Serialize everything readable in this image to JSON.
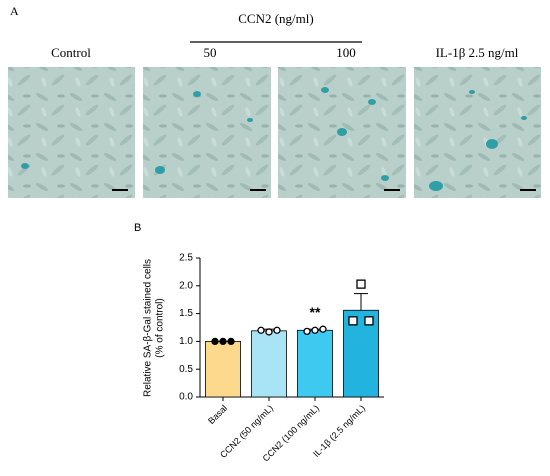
{
  "panel_a": {
    "label": "A",
    "group_label": "CCN2 (ng/ml)",
    "image_labels": [
      "Control",
      "50",
      "100",
      "IL-1β 2.5 ng/ml"
    ]
  },
  "chart_data": {
    "type": "bar",
    "panel_label": "B",
    "ylabel": [
      "Relative SA-β-Gal stained cells",
      "(% of control)"
    ],
    "categories": [
      "Basal",
      "CCN2 (50 ng/mL)",
      "CCN2 (100 ng/mL)",
      "IL-1β (2.5 ng/mL)"
    ],
    "values": [
      1.0,
      1.19,
      1.2,
      1.56
    ],
    "errors": [
      0,
      0.03,
      0.02,
      0.3
    ],
    "points": [
      [
        1.0,
        1.0,
        1.0
      ],
      [
        1.2,
        1.17,
        1.2
      ],
      [
        1.18,
        1.2,
        1.22
      ],
      [
        2.03,
        1.37,
        1.37
      ]
    ],
    "point_markers": [
      "dot",
      "circle",
      "circle",
      "square"
    ],
    "significance": [
      null,
      null,
      "**",
      null
    ],
    "colors": [
      "#fcd98c",
      "#a9e4f6",
      "#3ec9f0",
      "#22b4de"
    ],
    "ylim": [
      0,
      2.5
    ],
    "yticks": [
      {
        "value": 0,
        "label": "0.0"
      },
      0.5,
      {
        "value": 1,
        "label": "1.0"
      },
      1.5,
      {
        "value": 2,
        "label": "2.0"
      },
      2.5
    ]
  }
}
